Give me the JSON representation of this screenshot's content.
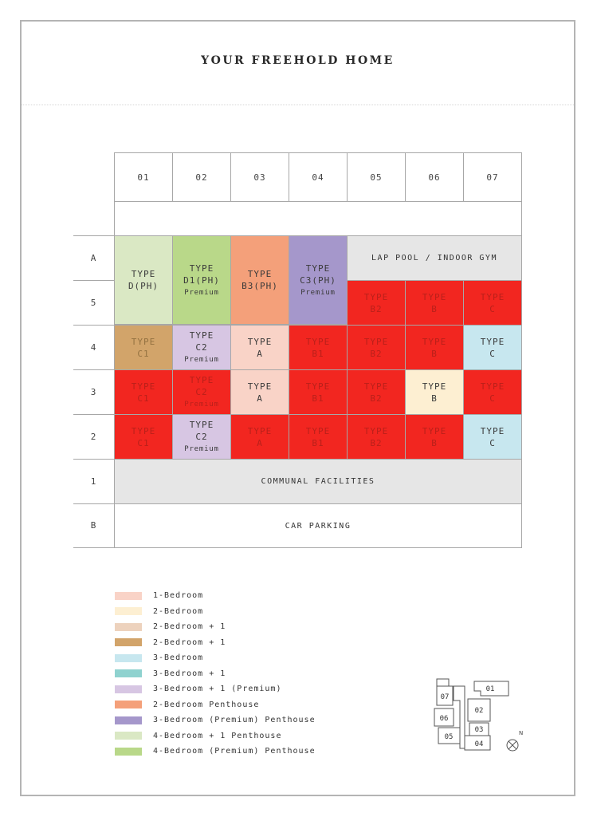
{
  "title": "YOUR FREEHOLD HOME",
  "columns": [
    "01",
    "02",
    "03",
    "04",
    "05",
    "06",
    "07"
  ],
  "rows": [
    "A",
    "5",
    "4",
    "3",
    "2",
    "1",
    "B"
  ],
  "colors": {
    "one_bedroom": "#f9d3c7",
    "two_bedroom": "#fdefd2",
    "two_bedroom_plus_one": "#edd2bd",
    "two_bedroom_plus_one_dark": "#d2a46a",
    "three_bedroom": "#c7e7ef",
    "three_bedroom_plus_one": "#8fd2cf",
    "three_bedroom_plus_one_premium": "#d7c6e3",
    "two_bedroom_penthouse": "#f4a07a",
    "three_bedroom_premium_penthouse": "#a597cb",
    "four_bedroom_plus_one_penthouse": "#dae8c4",
    "four_bedroom_premium_penthouse": "#b9d889",
    "sold": "#f22620",
    "amenity": "#e6e6e6"
  },
  "penthouses": {
    "d_ph": {
      "line1": "TYPE",
      "line2": "D(PH)"
    },
    "d1_ph": {
      "line1": "TYPE",
      "line2": "D1(PH)",
      "sub": "Premium"
    },
    "b3_ph": {
      "line1": "TYPE",
      "line2": "B3(PH)"
    },
    "c3_ph": {
      "line1": "TYPE",
      "line2": "C3(PH)",
      "sub": "Premium"
    }
  },
  "lap_pool": "LAP POOL / INDOOR GYM",
  "units": {
    "r5": [
      {
        "line1": "TYPE",
        "line2": "B2"
      },
      {
        "line1": "TYPE",
        "line2": "B"
      },
      {
        "line1": "TYPE",
        "line2": "C"
      }
    ],
    "r4": [
      {
        "line1": "TYPE",
        "line2": "C1"
      },
      {
        "line1": "TYPE",
        "line2": "C2",
        "sub": "Premium"
      },
      {
        "line1": "TYPE",
        "line2": "A"
      },
      {
        "line1": "TYPE",
        "line2": "B1"
      },
      {
        "line1": "TYPE",
        "line2": "B2"
      },
      {
        "line1": "TYPE",
        "line2": "B"
      },
      {
        "line1": "TYPE",
        "line2": "C"
      }
    ],
    "r3": [
      {
        "line1": "TYPE",
        "line2": "C1"
      },
      {
        "line1": "TYPE",
        "line2": "C2",
        "sub": "Premium"
      },
      {
        "line1": "TYPE",
        "line2": "A"
      },
      {
        "line1": "TYPE",
        "line2": "B1"
      },
      {
        "line1": "TYPE",
        "line2": "B2"
      },
      {
        "line1": "TYPE",
        "line2": "B"
      },
      {
        "line1": "TYPE",
        "line2": "C"
      }
    ],
    "r2": [
      {
        "line1": "TYPE",
        "line2": "C1"
      },
      {
        "line1": "TYPE",
        "line2": "C2",
        "sub": "Premium"
      },
      {
        "line1": "TYPE",
        "line2": "A"
      },
      {
        "line1": "TYPE",
        "line2": "B1"
      },
      {
        "line1": "TYPE",
        "line2": "B2"
      },
      {
        "line1": "TYPE",
        "line2": "B"
      },
      {
        "line1": "TYPE",
        "line2": "C"
      }
    ]
  },
  "communal": "COMMUNAL FACILITIES",
  "car_parking": "CAR PARKING",
  "legend": [
    {
      "label": "1-Bedroom",
      "color": "#f9d3c7"
    },
    {
      "label": "2-Bedroom",
      "color": "#fdefd2"
    },
    {
      "label": "2-Bedroom + 1",
      "color": "#edd2bd"
    },
    {
      "label": "2-Bedroom + 1",
      "color": "#d2a46a"
    },
    {
      "label": "3-Bedroom",
      "color": "#c7e7ef"
    },
    {
      "label": "3-Bedroom + 1",
      "color": "#8fd2cf"
    },
    {
      "label": "3-Bedroom + 1 (Premium)",
      "color": "#d7c6e3"
    },
    {
      "label": "2-Bedroom Penthouse",
      "color": "#f4a07a"
    },
    {
      "label": "3-Bedroom (Premium) Penthouse",
      "color": "#a597cb"
    },
    {
      "label": "4-Bedroom + 1 Penthouse",
      "color": "#dae8c4"
    },
    {
      "label": "4-Bedroom (Premium) Penthouse",
      "color": "#b9d889"
    }
  ],
  "keyplan": {
    "units": [
      "01",
      "02",
      "03",
      "04",
      "05",
      "06",
      "07"
    ],
    "north": "N"
  }
}
